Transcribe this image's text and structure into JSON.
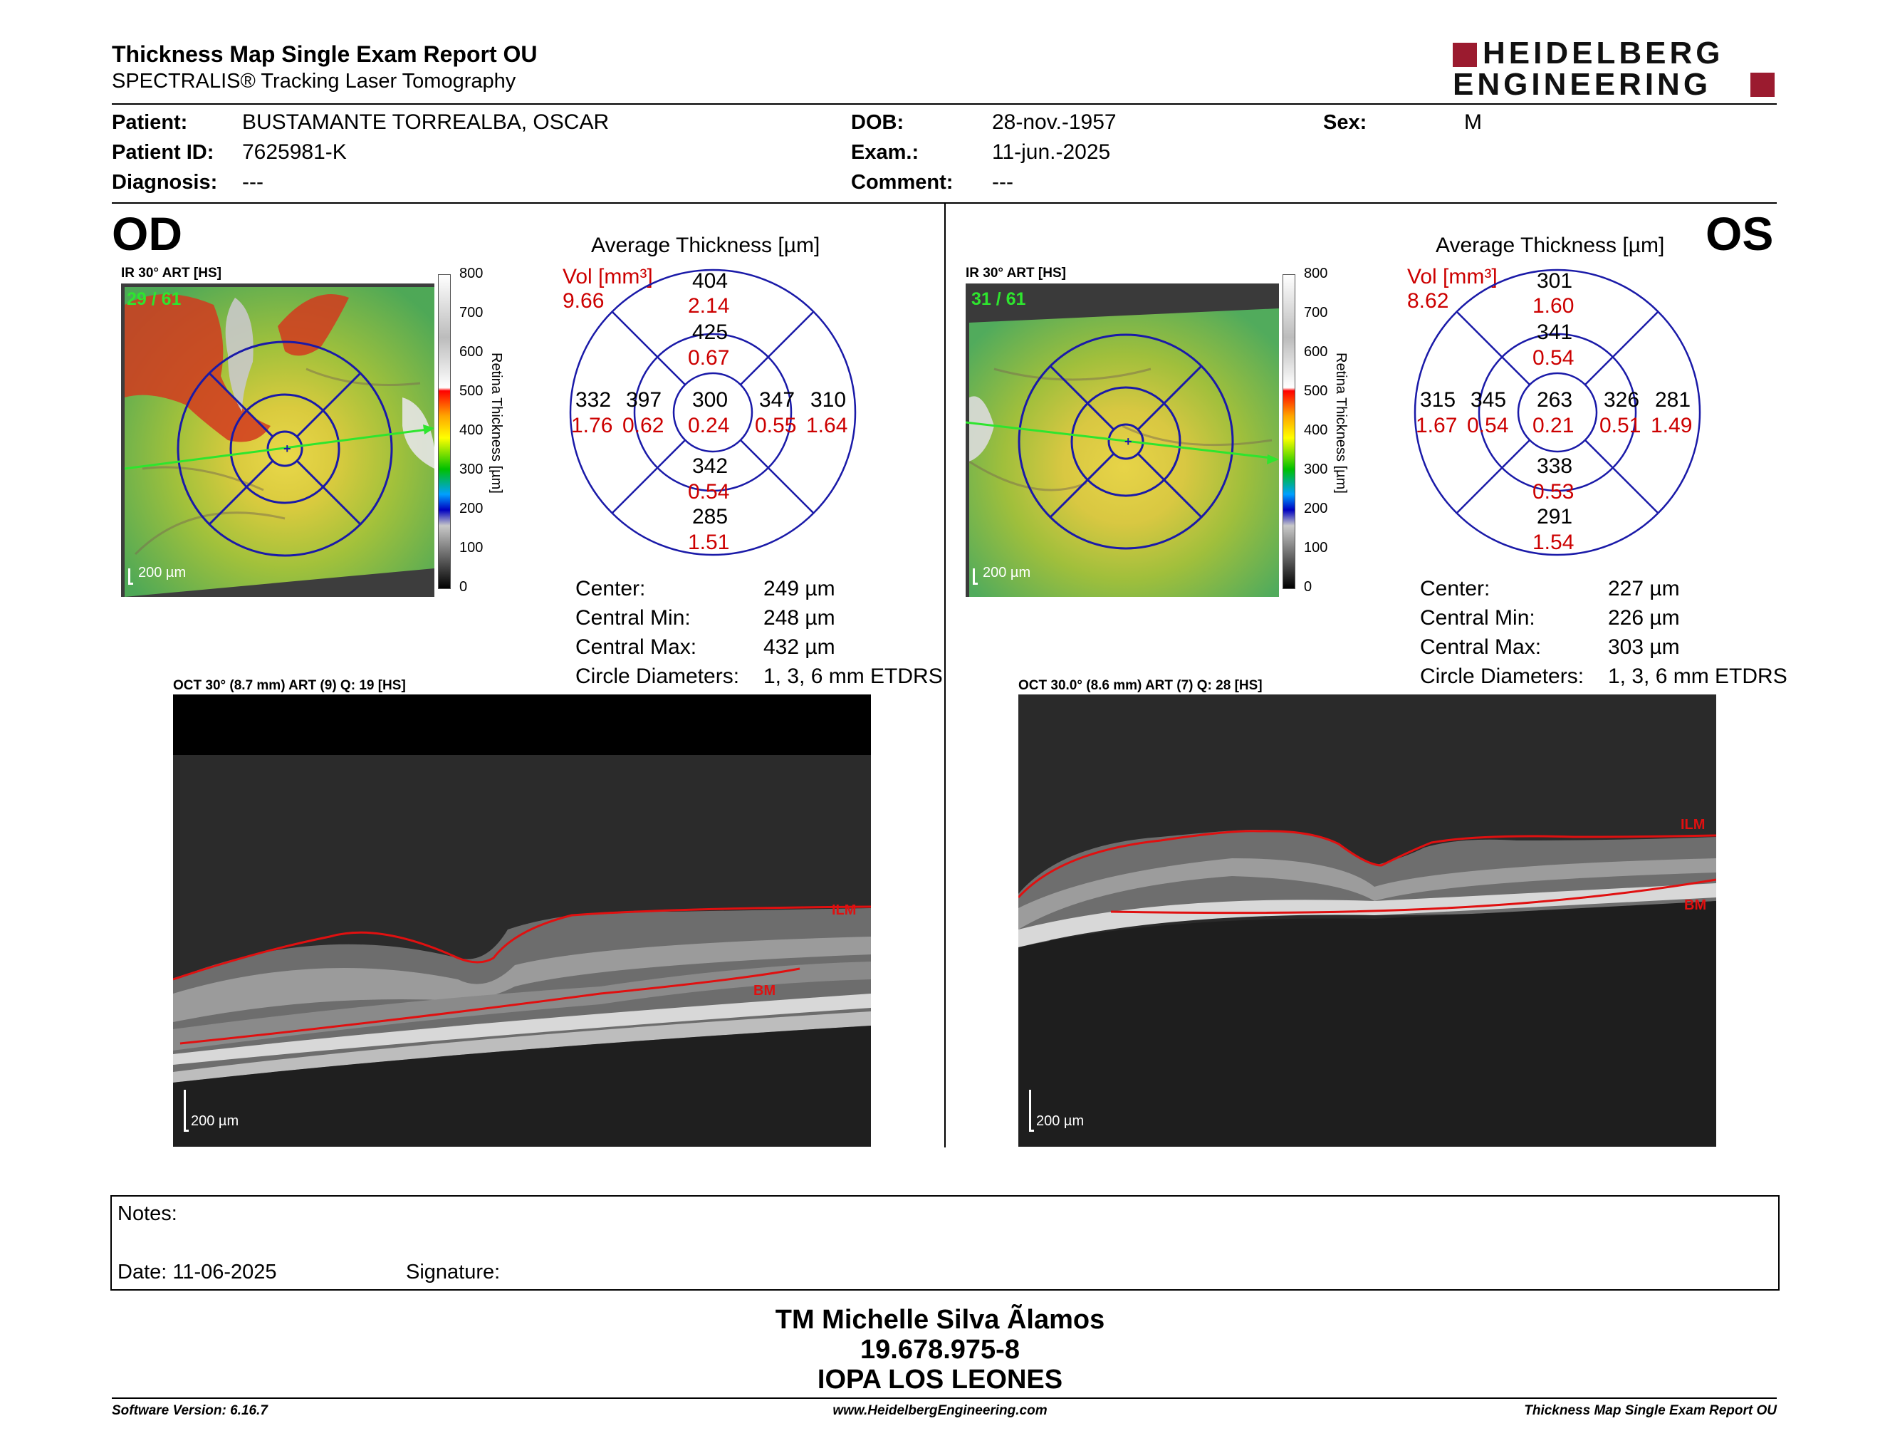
{
  "header": {
    "title": "Thickness Map Single Exam Report OU",
    "subtitle": "SPECTRALIS® Tracking Laser Tomography",
    "logo_line1": "HEIDELBERG",
    "logo_line2": "ENGINEERING"
  },
  "patient": {
    "patient_label": "Patient:",
    "patient_value": "BUSTAMANTE TORREALBA, OSCAR",
    "id_label": "Patient ID:",
    "id_value": "7625981-K",
    "diagnosis_label": "Diagnosis:",
    "diagnosis_value": "---",
    "dob_label": "DOB:",
    "dob_value": "28-nov.-1957",
    "exam_label": "Exam.:",
    "exam_value": "11-jun.-2025",
    "comment_label": "Comment:",
    "comment_value": "---",
    "sex_label": "Sex:",
    "sex_value": "M"
  },
  "od": {
    "eye": "OD",
    "ir_label": "IR 30° ART [HS]",
    "frames": "29 / 61",
    "scale": "200 µm",
    "avg_title": "Average Thickness [µm]",
    "vol_label": "Vol [mm³]",
    "vol_total": "9.66",
    "sectors": {
      "outer_sup": {
        "t": "404",
        "v": "2.14"
      },
      "inner_sup": {
        "t": "425",
        "v": "0.67"
      },
      "outer_tmp": {
        "t": "332",
        "v": "1.76"
      },
      "inner_tmp": {
        "t": "397",
        "v": "0.62"
      },
      "center": {
        "t": "300",
        "v": "0.24"
      },
      "inner_nas": {
        "t": "347",
        "v": "0.55"
      },
      "outer_nas": {
        "t": "310",
        "v": "1.64"
      },
      "inner_inf": {
        "t": "342",
        "v": "0.54"
      },
      "outer_inf": {
        "t": "285",
        "v": "1.51"
      }
    },
    "stats": [
      {
        "label": "Center:",
        "value": "249 µm"
      },
      {
        "label": "Central Min:",
        "value": "248 µm"
      },
      {
        "label": "Central Max:",
        "value": "432 µm"
      },
      {
        "label": "Circle Diameters:",
        "value": "1, 3, 6 mm ETDRS"
      }
    ],
    "oct_label": "OCT 30° (8.7 mm) ART (9) Q: 19 [HS]",
    "ilm": "ILM",
    "bm": "BM",
    "oct_scale": "200 µm"
  },
  "os": {
    "eye": "OS",
    "ir_label": "IR 30° ART [HS]",
    "frames": "31 / 61",
    "scale": "200 µm",
    "avg_title": "Average Thickness [µm]",
    "vol_label": "Vol [mm³]",
    "vol_total": "8.62",
    "sectors": {
      "outer_sup": {
        "t": "301",
        "v": "1.60"
      },
      "inner_sup": {
        "t": "341",
        "v": "0.54"
      },
      "outer_tmp": {
        "t": "315",
        "v": "1.67"
      },
      "inner_tmp": {
        "t": "345",
        "v": "0.54"
      },
      "center": {
        "t": "263",
        "v": "0.21"
      },
      "inner_nas": {
        "t": "326",
        "v": "0.51"
      },
      "outer_nas": {
        "t": "281",
        "v": "1.49"
      },
      "inner_inf": {
        "t": "338",
        "v": "0.53"
      },
      "outer_inf": {
        "t": "291",
        "v": "1.54"
      }
    },
    "stats": [
      {
        "label": "Center:",
        "value": "227 µm"
      },
      {
        "label": "Central Min:",
        "value": "226 µm"
      },
      {
        "label": "Central Max:",
        "value": "303 µm"
      },
      {
        "label": "Circle Diameters:",
        "value": "1, 3, 6 mm ETDRS"
      }
    ],
    "oct_label": "OCT 30.0° (8.6 mm) ART (7) Q: 28 [HS]",
    "ilm": "ILM",
    "bm": "BM",
    "oct_scale": "200 µm"
  },
  "colorbar": {
    "ticks": [
      "800",
      "700",
      "600",
      "500",
      "400",
      "300",
      "200",
      "100",
      "0"
    ],
    "label": "Retina Thickness [µm]"
  },
  "notes": {
    "notes_label": "Notes:",
    "date_label": "Date: 11-06-2025",
    "signature_label": "Signature:"
  },
  "signature": {
    "name": "TM Michelle Silva Ãlamos",
    "rut": "19.678.975-8",
    "org": "IOPA LOS LEONES"
  },
  "footer": {
    "version": "Software Version: 6.16.7",
    "url": "www.HeidelbergEngineering.com",
    "report": "Thickness Map Single Exam Report OU"
  },
  "colors": {
    "red": "#cc0000",
    "blue": "#1a1aa8",
    "brand": "#9b1b2f"
  }
}
